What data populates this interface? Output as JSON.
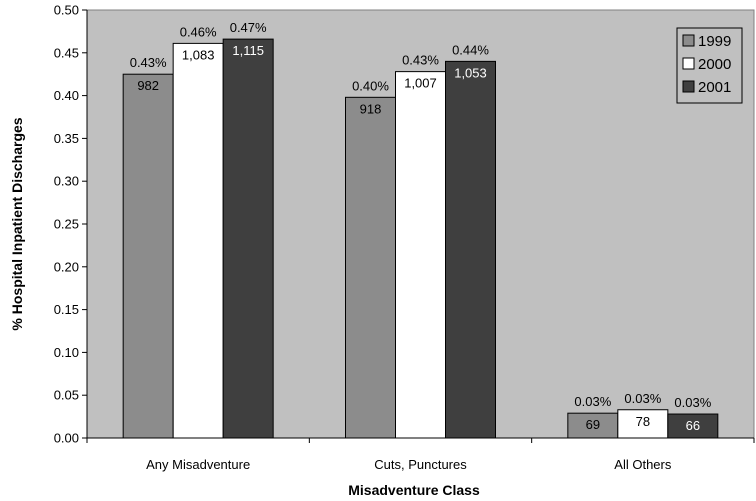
{
  "chart_data": {
    "type": "bar",
    "categories": [
      "Any Misadventure",
      "Cuts, Punctures",
      "All Others"
    ],
    "series": [
      {
        "name": "1999",
        "values": [
          0.425,
          0.398,
          0.029
        ],
        "value_labels": [
          "0.43%",
          "0.40%",
          "0.03%"
        ],
        "count_labels": [
          "982",
          "918",
          "69"
        ],
        "color": "#8c8c8c"
      },
      {
        "name": "2000",
        "values": [
          0.461,
          0.428,
          0.033
        ],
        "value_labels": [
          "0.46%",
          "0.43%",
          "0.03%"
        ],
        "count_labels": [
          "1,083",
          "1,007",
          "78"
        ],
        "color": "#ffffff"
      },
      {
        "name": "2001",
        "values": [
          0.466,
          0.44,
          0.028
        ],
        "value_labels": [
          "0.47%",
          "0.44%",
          "0.03%"
        ],
        "count_labels": [
          "1,115",
          "1,053",
          "66"
        ],
        "color": "#3f3f3f"
      }
    ],
    "xlabel": "Misadventure Class",
    "ylabel": "% Hospital Inpatient Discharges",
    "ylim": [
      0,
      0.5
    ],
    "yticks": [
      "0.00",
      "0.05",
      "0.10",
      "0.15",
      "0.20",
      "0.25",
      "0.30",
      "0.35",
      "0.40",
      "0.45",
      "0.50"
    ],
    "plot_background": "#c0c0c0",
    "legend": "top-right",
    "grid": false
  }
}
